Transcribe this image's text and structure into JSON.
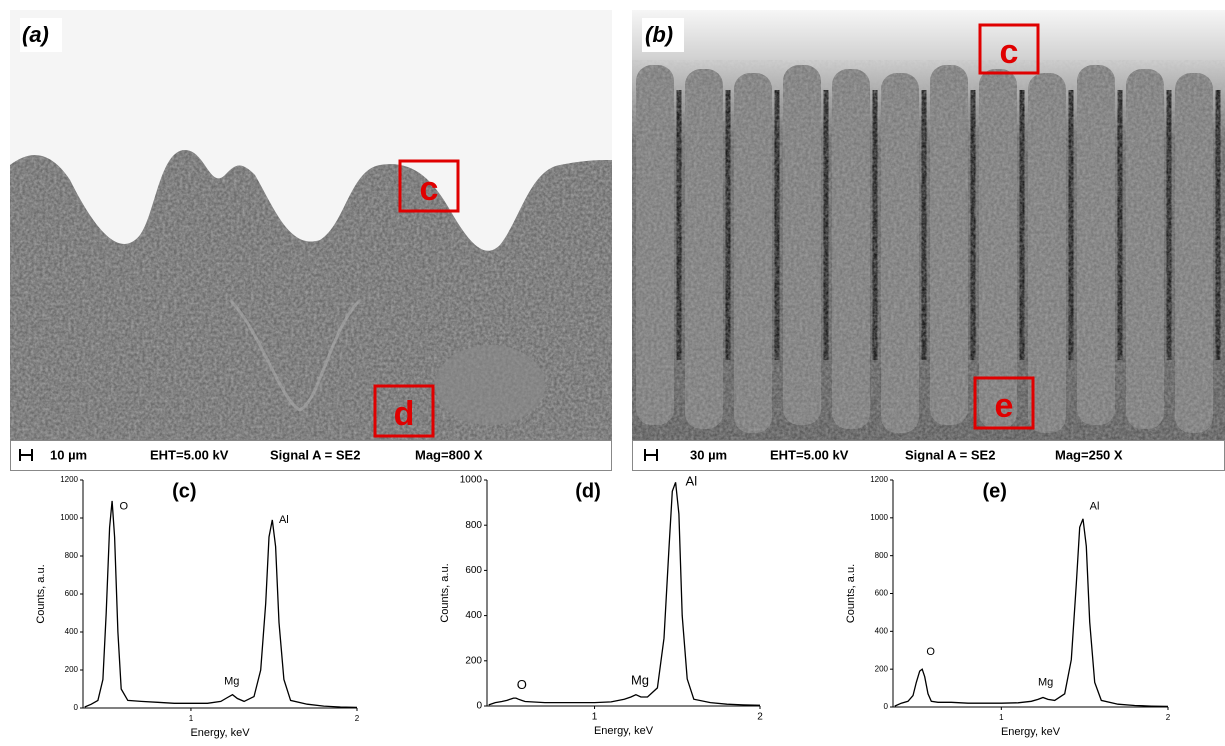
{
  "images": [
    {
      "label": "(a)",
      "regions": [
        "c",
        "d"
      ],
      "scale_bar": "10 µm",
      "eht": "EHT=5.00 kV",
      "signal": "Signal A = SE2",
      "mag": "Mag=800 X"
    },
    {
      "label": "(b)",
      "regions": [
        "c",
        "e"
      ],
      "scale_bar": "30 µm",
      "eht": "EHT=5.00 kV",
      "signal": "Signal A = SE2",
      "mag": "Mag=250 X"
    }
  ],
  "chart_data": [
    {
      "type": "line",
      "title": "(c)",
      "x_label": "Energy, keV",
      "y_label": "Counts, a.u.",
      "color": "#000000",
      "x": [
        0.36,
        0.4,
        0.44,
        0.47,
        0.49,
        0.51,
        0.525,
        0.54,
        0.56,
        0.58,
        0.62,
        0.7,
        0.8,
        0.9,
        1.0,
        1.1,
        1.18,
        1.22,
        1.25,
        1.28,
        1.32,
        1.38,
        1.42,
        1.45,
        1.47,
        1.49,
        1.51,
        1.53,
        1.56,
        1.6,
        1.7,
        1.8,
        1.9,
        2.0
      ],
      "values": [
        5,
        20,
        40,
        150,
        500,
        950,
        1090,
        900,
        400,
        100,
        40,
        35,
        30,
        25,
        25,
        25,
        35,
        55,
        70,
        50,
        35,
        60,
        200,
        550,
        900,
        990,
        850,
        450,
        150,
        40,
        20,
        10,
        5,
        3
      ],
      "xlim": [
        0.35,
        2
      ],
      "xticks": [
        1,
        2
      ],
      "ylim": [
        0,
        1200
      ],
      "yticks": [
        0,
        200,
        400,
        600,
        800,
        1000,
        1200
      ],
      "annotations": [
        {
          "text": "O",
          "x": 0.57,
          "y": 1060
        },
        {
          "text": "Mg",
          "x": 1.2,
          "y": 140
        },
        {
          "text": "Al",
          "x": 1.53,
          "y": 990
        }
      ]
    },
    {
      "type": "line",
      "title": "(d)",
      "x_label": "Energy, keV",
      "y_label": "Counts, a.u.",
      "color": "#000000",
      "x": [
        0.36,
        0.4,
        0.44,
        0.47,
        0.49,
        0.51,
        0.525,
        0.54,
        0.56,
        0.58,
        0.62,
        0.7,
        0.8,
        0.9,
        1.0,
        1.1,
        1.18,
        1.22,
        1.25,
        1.28,
        1.32,
        1.38,
        1.42,
        1.45,
        1.47,
        1.49,
        1.51,
        1.53,
        1.56,
        1.6,
        1.7,
        1.8,
        1.9,
        2.0
      ],
      "values": [
        5,
        15,
        20,
        25,
        30,
        35,
        35,
        30,
        25,
        20,
        18,
        15,
        15,
        15,
        15,
        18,
        30,
        40,
        50,
        40,
        40,
        80,
        300,
        700,
        950,
        990,
        850,
        400,
        120,
        30,
        15,
        8,
        5,
        3
      ],
      "xlim": [
        0.35,
        2
      ],
      "xticks": [
        1,
        2
      ],
      "ylim": [
        0,
        1000
      ],
      "yticks": [
        0,
        200,
        400,
        600,
        800,
        1000
      ],
      "annotations": [
        {
          "text": "O",
          "x": 0.53,
          "y": 90
        },
        {
          "text": "Mg",
          "x": 1.22,
          "y": 110
        },
        {
          "text": "Al",
          "x": 1.55,
          "y": 990
        }
      ]
    },
    {
      "type": "line",
      "title": "(e)",
      "x_label": "Energy, keV",
      "y_label": "Counts, a.u.",
      "color": "#000000",
      "x": [
        0.36,
        0.4,
        0.44,
        0.47,
        0.49,
        0.51,
        0.525,
        0.54,
        0.56,
        0.58,
        0.62,
        0.7,
        0.8,
        0.9,
        1.0,
        1.1,
        1.18,
        1.22,
        1.25,
        1.28,
        1.32,
        1.38,
        1.42,
        1.45,
        1.47,
        1.49,
        1.51,
        1.53,
        1.56,
        1.6,
        1.7,
        1.8,
        1.9,
        2.0
      ],
      "values": [
        5,
        20,
        30,
        60,
        130,
        190,
        200,
        160,
        70,
        30,
        25,
        25,
        20,
        20,
        20,
        22,
        30,
        40,
        50,
        40,
        35,
        70,
        250,
        650,
        950,
        995,
        850,
        450,
        130,
        35,
        15,
        8,
        5,
        3
      ],
      "xlim": [
        0.35,
        2
      ],
      "xticks": [
        1,
        2
      ],
      "ylim": [
        0,
        1200
      ],
      "yticks": [
        0,
        200,
        400,
        600,
        800,
        1000,
        1200
      ],
      "annotations": [
        {
          "text": "O",
          "x": 0.55,
          "y": 290
        },
        {
          "text": "Mg",
          "x": 1.22,
          "y": 130
        },
        {
          "text": "Al",
          "x": 1.53,
          "y": 1060
        }
      ]
    }
  ]
}
